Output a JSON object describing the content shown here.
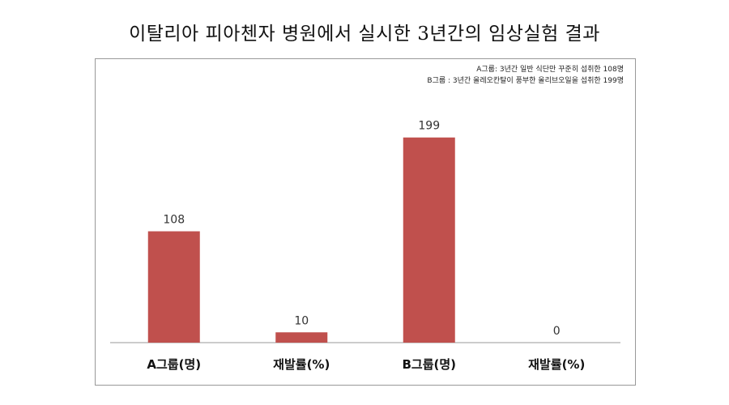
{
  "chart_data": {
    "type": "bar",
    "title": "이탈리아 피아첸자 병원에서 실시한 3년간의 임상실험 결과",
    "notes": [
      "A그룹: 3년간 일반 식단만 꾸준히 섭취한 108명",
      "B그룹 : 3년간 올레오칸탈이 풍부한 올리브오일을 섭취한 199명"
    ],
    "categories": [
      "A그룹(명)",
      "재발률(%)",
      "B그룹(명)",
      "재발률(%)"
    ],
    "values": [
      108,
      10,
      199,
      0
    ],
    "ylim": [
      0,
      220
    ],
    "grid": false,
    "bar_color": "#c0504d",
    "axis_color": "#999999"
  }
}
